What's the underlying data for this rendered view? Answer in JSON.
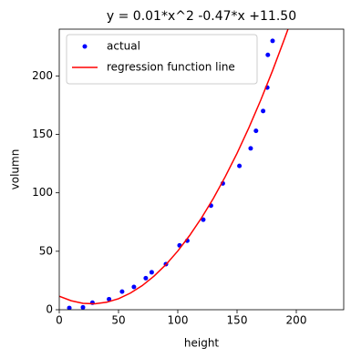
{
  "chart_data": {
    "type": "scatter",
    "title": "y = 0.01*x^2 -0.47*x +11.50",
    "x_label": "height",
    "y_label": "volumn",
    "xlim": [
      0,
      240
    ],
    "ylim": [
      0,
      240
    ],
    "xticks": [
      0,
      50,
      100,
      150,
      200
    ],
    "yticks": [
      0,
      50,
      100,
      150,
      200
    ],
    "grid": false,
    "legend": "upper left",
    "series": [
      {
        "name": "actual",
        "type": "scatter",
        "color": "#0000ff",
        "x": [
          8.5,
          20,
          28,
          42,
          53,
          63,
          73,
          78,
          90,
          101.5,
          108,
          121.5,
          128,
          138,
          152,
          161.5,
          166,
          172,
          175.5,
          176,
          180
        ],
        "values": [
          1.5,
          2,
          6,
          9,
          15.5,
          19.5,
          27,
          32,
          39,
          55,
          59,
          77,
          89,
          108,
          123,
          138,
          153,
          170,
          190,
          218,
          230
        ]
      },
      {
        "name": "regression function line",
        "type": "line",
        "color": "#ff0000",
        "x": [
          0,
          10,
          20,
          30,
          40,
          50,
          60,
          70,
          80,
          90,
          100,
          110,
          120,
          130,
          140,
          150,
          160,
          170,
          180,
          190,
          193
        ],
        "values": [
          11.5,
          7.7,
          5.5,
          5.1,
          6.4,
          9.4,
          14.2,
          20.6,
          28.8,
          38.6,
          50.2,
          63.5,
          78.5,
          95.2,
          113.7,
          133.8,
          155.7,
          179.3,
          204.6,
          231.6,
          240
        ]
      }
    ]
  }
}
